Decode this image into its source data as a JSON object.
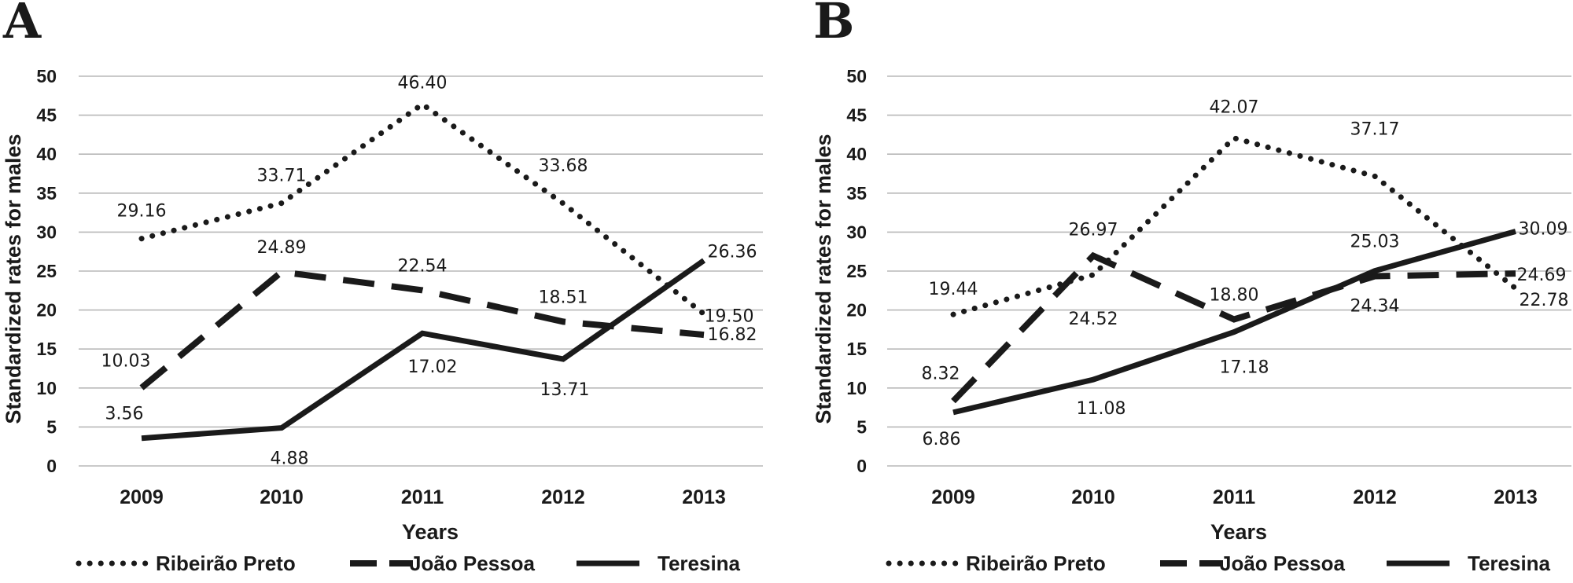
{
  "chart_data": [
    {
      "panel": "A",
      "type": "line",
      "categories": [
        "2009",
        "2010",
        "2011",
        "2012",
        "2013"
      ],
      "xlabel": "Years",
      "ylabel": "Standardized rates for males",
      "ylim": [
        0,
        50
      ],
      "yticks": [
        "0",
        "5",
        "10",
        "15",
        "20",
        "25",
        "30",
        "35",
        "40",
        "45",
        "50"
      ],
      "grid": true,
      "series": [
        {
          "name": "Ribeirão Preto",
          "style": "dotted",
          "values": [
            29.16,
            33.71,
            46.4,
            33.68,
            19.5
          ],
          "labels": [
            "29.16",
            "33.71",
            "46.40",
            "33.68",
            "19.50"
          ]
        },
        {
          "name": "João Pessoa",
          "style": "dashed",
          "values": [
            10.03,
            24.89,
            22.54,
            18.51,
            16.82
          ],
          "labels": [
            "10.03",
            "24.89",
            "22.54",
            "18.51",
            "16.82"
          ]
        },
        {
          "name": "Teresina",
          "style": "solid",
          "values": [
            3.56,
            4.88,
            17.02,
            13.71,
            26.36
          ],
          "labels": [
            "3.56",
            "4.88",
            "17.02",
            "13.71",
            "26.36"
          ]
        }
      ]
    },
    {
      "panel": "B",
      "type": "line",
      "categories": [
        "2009",
        "2010",
        "2011",
        "2012",
        "2013"
      ],
      "xlabel": "Years",
      "ylabel": "Standardized rates for males",
      "ylim": [
        0,
        50
      ],
      "yticks": [
        "0",
        "5",
        "10",
        "15",
        "20",
        "25",
        "30",
        "35",
        "40",
        "45",
        "50"
      ],
      "grid": true,
      "series": [
        {
          "name": "Ribeirão Preto",
          "style": "dotted",
          "values": [
            19.44,
            24.52,
            42.07,
            37.17,
            22.78
          ],
          "labels": [
            "19.44",
            "24.52",
            "42.07",
            "37.17",
            "22.78"
          ]
        },
        {
          "name": "João Pessoa",
          "style": "dashed",
          "values": [
            8.32,
            26.97,
            18.8,
            24.34,
            24.69
          ],
          "labels": [
            "8.32",
            "26.97",
            "18.80",
            "24.34",
            "24.69"
          ]
        },
        {
          "name": "Teresina",
          "style": "solid",
          "values": [
            6.86,
            11.08,
            17.18,
            25.03,
            30.09
          ],
          "labels": [
            "6.86",
            "11.08",
            "17.18",
            "25.03",
            "30.09"
          ]
        }
      ]
    }
  ]
}
